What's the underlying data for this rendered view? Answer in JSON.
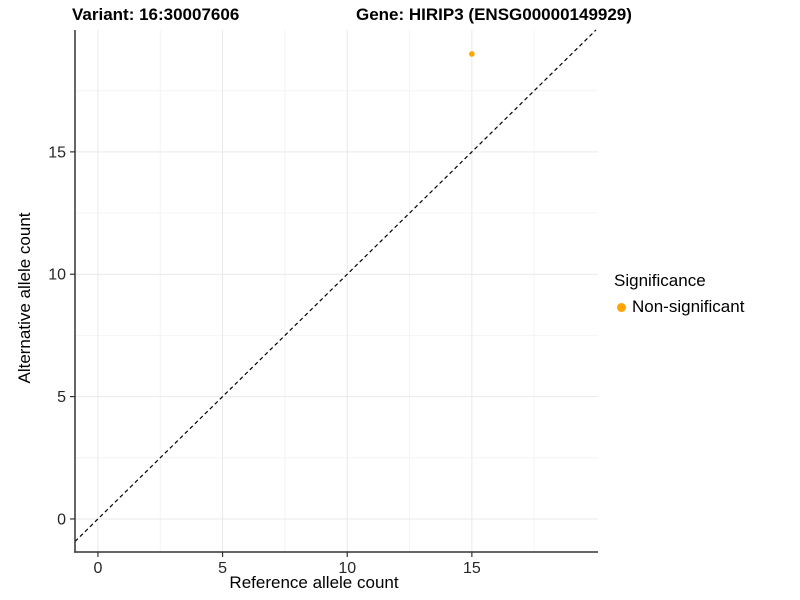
{
  "titles": {
    "variant": "Variant: 16:30007606",
    "gene": "Gene: HIRIP3 (ENSG00000149929)"
  },
  "chart_data": {
    "type": "scatter",
    "xlabel": "Reference allele count",
    "ylabel": "Alternative allele count",
    "xlim": [
      -0.92,
      20.06
    ],
    "ylim": [
      -1.35,
      19.98
    ],
    "x_ticks": [
      0,
      5,
      10,
      15
    ],
    "y_ticks": [
      0,
      5,
      10,
      15
    ],
    "x_minor_ticks": [
      2.5,
      7.5,
      12.5,
      17.5
    ],
    "y_minor_ticks": [
      2.5,
      7.5,
      12.5,
      17.5
    ],
    "grid": "major+minor",
    "reference_line": {
      "kind": "identity",
      "style": "dashed",
      "color": "#000000"
    },
    "series": [
      {
        "name": "Non-significant",
        "color": "#FFA500",
        "points": [
          {
            "x": 15,
            "y": 19
          }
        ]
      }
    ],
    "legend": {
      "title": "Significance",
      "position": "right",
      "entries": [
        {
          "label": "Non-significant",
          "color": "#FFA500"
        }
      ]
    }
  },
  "colors": {
    "background": "#FFFFFF",
    "grid_major": "#E9E9E9",
    "grid_minor": "#F4F4F4",
    "axis_line": "#333333",
    "tick_label": "#262626",
    "point": "#FFA500"
  }
}
